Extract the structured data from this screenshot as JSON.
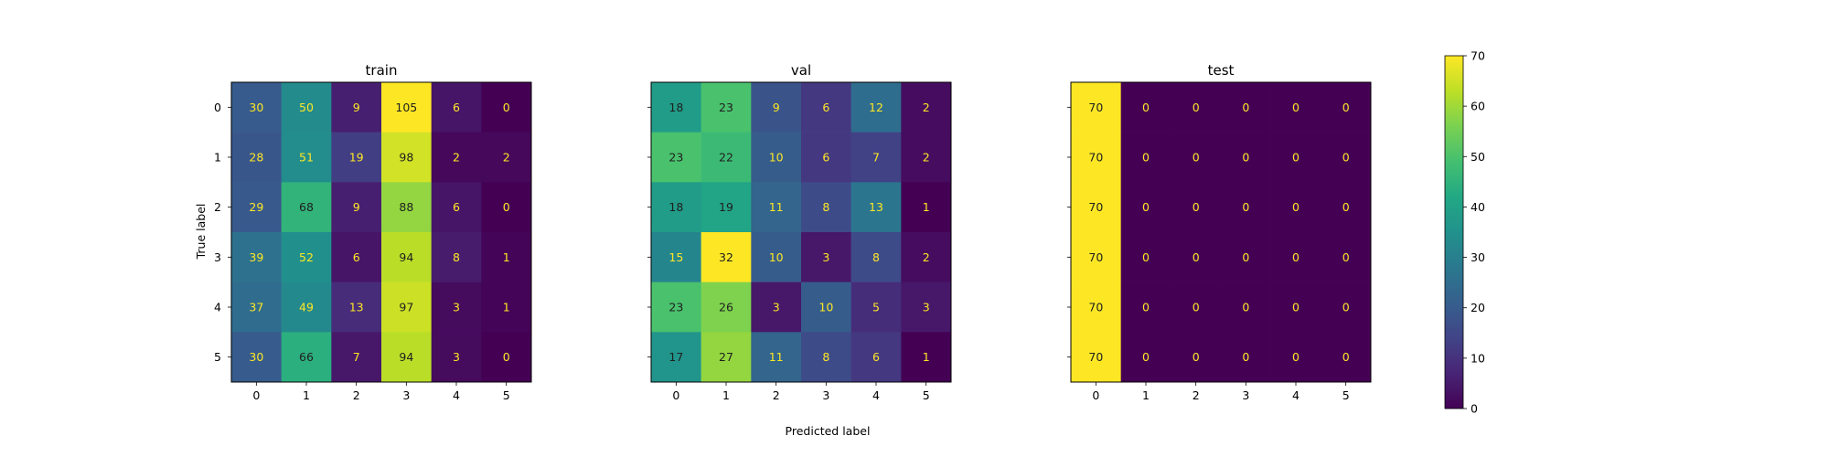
{
  "chart_data": [
    {
      "type": "heatmap",
      "title": "train",
      "x_ticks": [
        "0",
        "1",
        "2",
        "3",
        "4",
        "5"
      ],
      "y_ticks": [
        "0",
        "1",
        "2",
        "3",
        "4",
        "5"
      ],
      "xlabel": "",
      "ylabel": "True label",
      "values": [
        [
          30,
          50,
          9,
          105,
          6,
          0
        ],
        [
          28,
          51,
          19,
          98,
          2,
          2
        ],
        [
          29,
          68,
          9,
          88,
          6,
          0
        ],
        [
          39,
          52,
          6,
          94,
          8,
          1
        ],
        [
          37,
          49,
          13,
          97,
          3,
          1
        ],
        [
          30,
          66,
          7,
          94,
          3,
          0
        ]
      ]
    },
    {
      "type": "heatmap",
      "title": "val",
      "x_ticks": [
        "0",
        "1",
        "2",
        "3",
        "4",
        "5"
      ],
      "y_ticks": [
        "0",
        "1",
        "2",
        "3",
        "4",
        "5"
      ],
      "xlabel": "Predicted label",
      "ylabel": "",
      "values": [
        [
          18,
          23,
          9,
          6,
          12,
          2
        ],
        [
          23,
          22,
          10,
          6,
          7,
          2
        ],
        [
          18,
          19,
          11,
          8,
          13,
          1
        ],
        [
          15,
          32,
          10,
          3,
          8,
          2
        ],
        [
          23,
          26,
          3,
          10,
          5,
          3
        ],
        [
          17,
          27,
          11,
          8,
          6,
          1
        ]
      ]
    },
    {
      "type": "heatmap",
      "title": "test",
      "x_ticks": [
        "0",
        "1",
        "2",
        "3",
        "4",
        "5"
      ],
      "y_ticks": [
        "0",
        "1",
        "2",
        "3",
        "4",
        "5"
      ],
      "xlabel": "",
      "ylabel": "",
      "values": [
        [
          70,
          0,
          0,
          0,
          0,
          0
        ],
        [
          70,
          0,
          0,
          0,
          0,
          0
        ],
        [
          70,
          0,
          0,
          0,
          0,
          0
        ],
        [
          70,
          0,
          0,
          0,
          0,
          0
        ],
        [
          70,
          0,
          0,
          0,
          0,
          0
        ],
        [
          70,
          0,
          0,
          0,
          0,
          0
        ]
      ]
    }
  ],
  "colorbar": {
    "ticks": [
      "0",
      "10",
      "20",
      "30",
      "40",
      "50",
      "60",
      "70"
    ],
    "range": [
      0,
      70
    ],
    "colormap": "viridis"
  },
  "text_colors": {
    "dark_cell_text": "#fde725",
    "light_cell_text": "#1f1f1f"
  }
}
